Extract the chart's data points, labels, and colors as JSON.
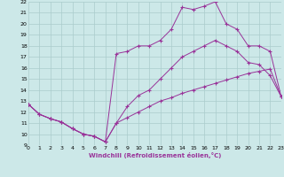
{
  "xlabel": "Windchill (Refroidissement éolien,°C)",
  "bg_color": "#cce8e8",
  "grid_color": "#aacccc",
  "line_color": "#993399",
  "xmin": 0,
  "xmax": 23,
  "ymin": 9,
  "ymax": 22,
  "series1_x": [
    0,
    1,
    2,
    3,
    4,
    5,
    6,
    7,
    8,
    9,
    10,
    11,
    12,
    13,
    14,
    15,
    16,
    17,
    18,
    19,
    20,
    21,
    22,
    23
  ],
  "series1_y": [
    12.7,
    11.8,
    11.4,
    11.1,
    10.5,
    10.0,
    9.8,
    9.3,
    11.0,
    11.5,
    12.0,
    12.5,
    13.0,
    13.3,
    13.7,
    14.0,
    14.3,
    14.6,
    14.9,
    15.2,
    15.5,
    15.7,
    15.9,
    13.4
  ],
  "series2_x": [
    0,
    1,
    2,
    3,
    4,
    5,
    6,
    7,
    8,
    9,
    10,
    11,
    12,
    13,
    14,
    15,
    16,
    17,
    18,
    19,
    20,
    21,
    22,
    23
  ],
  "series2_y": [
    12.7,
    11.8,
    11.4,
    11.1,
    10.5,
    10.0,
    9.8,
    9.3,
    17.3,
    17.5,
    18.0,
    18.0,
    18.5,
    19.5,
    21.5,
    21.3,
    21.6,
    22.0,
    20.0,
    19.5,
    18.0,
    18.0,
    17.5,
    13.4
  ],
  "series3_x": [
    0,
    1,
    2,
    3,
    4,
    5,
    6,
    7,
    8,
    9,
    10,
    11,
    12,
    13,
    14,
    15,
    16,
    17,
    18,
    19,
    20,
    21,
    22,
    23
  ],
  "series3_y": [
    12.7,
    11.8,
    11.4,
    11.1,
    10.5,
    10.0,
    9.8,
    9.3,
    11.0,
    12.5,
    13.5,
    14.0,
    15.0,
    16.0,
    17.0,
    17.5,
    18.0,
    18.5,
    18.0,
    17.5,
    16.5,
    16.3,
    15.3,
    13.4
  ],
  "xtick_labels": [
    "0",
    "1",
    "2",
    "3",
    "4",
    "5",
    "6",
    "7",
    "8",
    "9",
    "10",
    "11",
    "12",
    "13",
    "14",
    "15",
    "16",
    "17",
    "18",
    "19",
    "20",
    "21",
    "22",
    "23"
  ],
  "ytick_labels": [
    "9",
    "10",
    "11",
    "12",
    "13",
    "14",
    "15",
    "16",
    "17",
    "18",
    "19",
    "20",
    "21",
    "22"
  ]
}
